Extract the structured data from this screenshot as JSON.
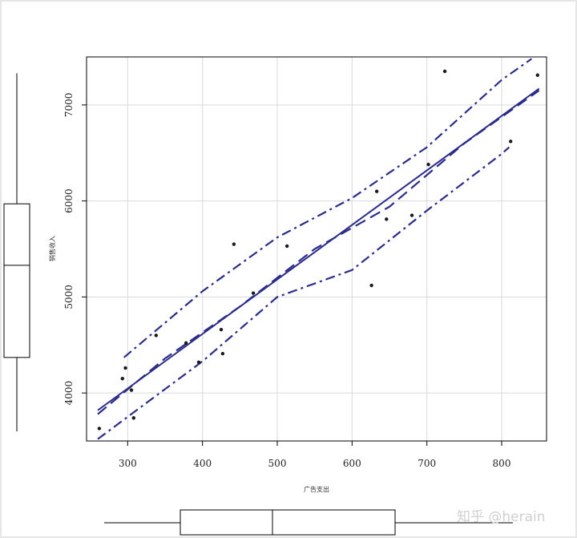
{
  "chart_data": {
    "type": "scatter",
    "title": "",
    "xlabel": "广告支出",
    "ylabel": "销售收入",
    "xlim": [
      245,
      860
    ],
    "ylim": [
      3500,
      7500
    ],
    "x_ticks": [
      300,
      400,
      500,
      600,
      700,
      800
    ],
    "y_ticks": [
      4000,
      5000,
      6000,
      7000
    ],
    "x_tick_labels": [
      "300",
      "400",
      "500",
      "600",
      "700",
      "800"
    ],
    "y_tick_labels": [
      "4000",
      "5000",
      "6000",
      "7000"
    ],
    "grid": true,
    "legend": "none",
    "colors": {
      "points": "#1a1a1a",
      "lines": "#2b2b8a",
      "grid": "#d9d9d9",
      "box": "#000000"
    },
    "points": [
      {
        "x": 262,
        "y": 3630
      },
      {
        "x": 293,
        "y": 4150
      },
      {
        "x": 297,
        "y": 4260
      },
      {
        "x": 305,
        "y": 4030
      },
      {
        "x": 308,
        "y": 3740
      },
      {
        "x": 338,
        "y": 4600
      },
      {
        "x": 378,
        "y": 4520
      },
      {
        "x": 395,
        "y": 4320
      },
      {
        "x": 425,
        "y": 4660
      },
      {
        "x": 427,
        "y": 4410
      },
      {
        "x": 442,
        "y": 5550
      },
      {
        "x": 468,
        "y": 5040
      },
      {
        "x": 513,
        "y": 5530
      },
      {
        "x": 626,
        "y": 5120
      },
      {
        "x": 633,
        "y": 6100
      },
      {
        "x": 646,
        "y": 5810
      },
      {
        "x": 680,
        "y": 5850
      },
      {
        "x": 702,
        "y": 6380
      },
      {
        "x": 724,
        "y": 7350
      },
      {
        "x": 812,
        "y": 6620
      },
      {
        "x": 848,
        "y": 7310
      }
    ],
    "series": [
      {
        "style": "solid",
        "x": [
          260,
          850
        ],
        "y": [
          3820,
          7170
        ]
      },
      {
        "style": "dashed",
        "x": [
          260,
          350,
          450,
          550,
          650,
          750,
          850
        ],
        "y": [
          3780,
          4360,
          4900,
          5500,
          5940,
          6600,
          7150
        ]
      },
      {
        "style": "dashdot-upper",
        "x": [
          295,
          400,
          500,
          600,
          700,
          800,
          840
        ],
        "y": [
          4370,
          5060,
          5620,
          6030,
          6560,
          7260,
          7480
        ]
      },
      {
        "style": "dashdot-lower",
        "x": [
          260,
          400,
          500,
          600,
          700,
          800,
          810
        ],
        "y": [
          3520,
          4330,
          5000,
          5280,
          5900,
          6490,
          6560
        ]
      }
    ],
    "x_boxplot": {
      "whisker_low": 130,
      "q1": 225,
      "median": 340,
      "q3": 493,
      "whisker_high": 640
    },
    "y_boxplot": {
      "whisker_low": 3600,
      "q1": 4370,
      "median": 5330,
      "q3": 5970,
      "whisker_high": 7330
    }
  },
  "watermark": "知乎 @herain"
}
